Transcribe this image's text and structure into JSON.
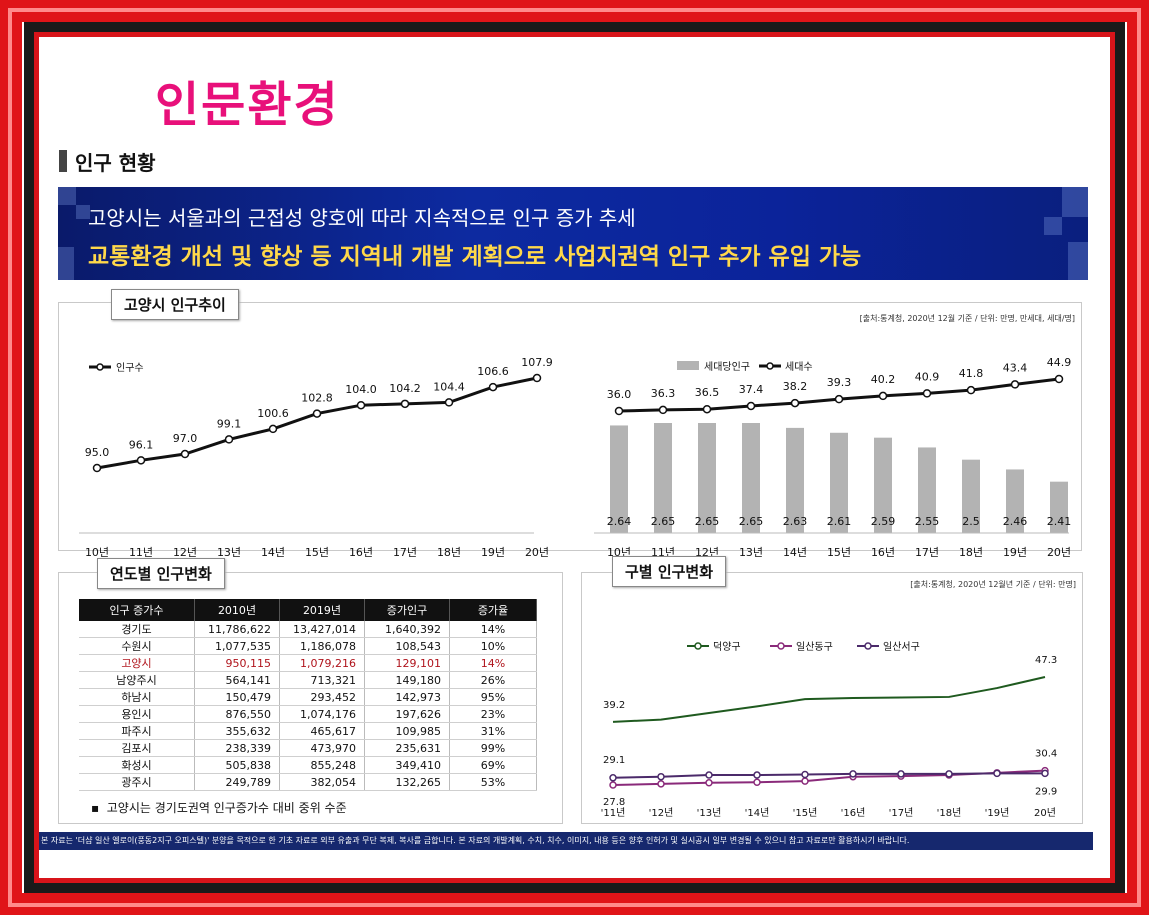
{
  "page_title": "인문환경",
  "section_title": "인구 현황",
  "banner": {
    "line1": "고양시는 서울과의  근접성 양호에 따라 지속적으로 인구 증가 추세",
    "line2": "교통환경 개선 및 향상 등 지역내 개발 계획으로 사업지권역  인구 추가 유입 가능"
  },
  "trend_panel": {
    "tab": "고양시 인구추이",
    "source": "[출처:통계청, 2020년 12월 기준 / 단위: 만명, 만세대, 세대/명]"
  },
  "yearly_panel": {
    "tab": "연도별 인구변화"
  },
  "district_panel": {
    "tab": "구별 인구변화",
    "source": "[출처:통계청, 2020년 12월년 기준 / 단위: 만명]"
  },
  "colors": {
    "title_pink": "#e8107a",
    "banner_blue": "#0d2aa0",
    "banner_yellow": "#ffd84a",
    "bar_gray": "#b3b3b3",
    "line_green": "#1f5a1f",
    "line_purple": "#8a2a7a",
    "line_violet": "#4b2a6a"
  },
  "chart_data": [
    {
      "type": "line",
      "categories": [
        "10년",
        "11년",
        "12년",
        "13년",
        "14년",
        "15년",
        "16년",
        "17년",
        "18년",
        "19년",
        "20년"
      ],
      "series": [
        {
          "name": "인구수",
          "values": [
            95.0,
            96.1,
            97.0,
            99.1,
            100.6,
            102.8,
            104.0,
            104.2,
            104.4,
            106.6,
            107.9
          ]
        }
      ],
      "value_labels": [
        "95.0",
        "96.1",
        "97.0",
        "99.1",
        "100.6",
        "102.8",
        "104.0",
        "104.2",
        "104.4",
        "106.6",
        "107.9"
      ],
      "grid": false
    },
    {
      "type": "bar",
      "categories": [
        "10년",
        "11년",
        "12년",
        "13년",
        "14년",
        "15년",
        "16년",
        "17년",
        "18년",
        "19년",
        "20년"
      ],
      "series": [
        {
          "name": "세대당인구",
          "type": "bar",
          "values": [
            2.64,
            2.65,
            2.65,
            2.65,
            2.63,
            2.61,
            2.59,
            2.55,
            2.5,
            2.46,
            2.41
          ],
          "labels": [
            "2.64",
            "2.65",
            "2.65",
            "2.65",
            "2.63",
            "2.61",
            "2.59",
            "2.55",
            "2.5",
            "2.46",
            "2.41"
          ]
        },
        {
          "name": "세대수",
          "type": "line",
          "values": [
            36.0,
            36.3,
            36.5,
            37.4,
            38.2,
            39.3,
            40.2,
            40.9,
            41.8,
            43.4,
            44.9
          ],
          "labels": [
            "36.0",
            "36.3",
            "36.5",
            "37.4",
            "38.2",
            "39.3",
            "40.2",
            "40.9",
            "41.8",
            "43.4",
            "44.9"
          ]
        }
      ],
      "grid": false
    },
    {
      "type": "table",
      "columns": [
        "인구 증가수",
        "2010년",
        "2019년",
        "증가인구",
        "증가율"
      ],
      "rows": [
        [
          "경기도",
          "11,786,622",
          "13,427,014",
          "1,640,392",
          "14%"
        ],
        [
          "수원시",
          "1,077,535",
          "1,186,078",
          "108,543",
          "10%"
        ],
        [
          "고양시",
          "950,115",
          "1,079,216",
          "129,101",
          "14%"
        ],
        [
          "남양주시",
          "564,141",
          "713,321",
          "149,180",
          "26%"
        ],
        [
          "하남시",
          "150,479",
          "293,452",
          "142,973",
          "95%"
        ],
        [
          "용인시",
          "876,550",
          "1,074,176",
          "197,626",
          "23%"
        ],
        [
          "파주시",
          "355,632",
          "465,617",
          "109,985",
          "31%"
        ],
        [
          "김포시",
          "238,339",
          "473,970",
          "235,631",
          "99%"
        ],
        [
          "화성시",
          "505,838",
          "855,248",
          "349,410",
          "69%"
        ],
        [
          "광주시",
          "249,789",
          "382,054",
          "132,265",
          "53%"
        ]
      ],
      "highlight_row": 2,
      "note": "고양시는 경기도권역 인구증가수 대비 중위 수준"
    },
    {
      "type": "line",
      "categories": [
        "'11년",
        "'12년",
        "'13년",
        "'14년",
        "'15년",
        "'16년",
        "'17년",
        "'18년",
        "'19년",
        "20년"
      ],
      "series": [
        {
          "name": "덕양구",
          "values": [
            39.2,
            39.6,
            40.8,
            42.0,
            43.3,
            43.5,
            43.6,
            43.7,
            45.3,
            47.3
          ]
        },
        {
          "name": "일산동구",
          "values": [
            27.8,
            28.0,
            28.2,
            28.3,
            28.5,
            29.3,
            29.4,
            29.6,
            30.0,
            30.4
          ]
        },
        {
          "name": "일산서구",
          "values": [
            29.1,
            29.3,
            29.6,
            29.6,
            29.7,
            29.8,
            29.8,
            29.8,
            29.9,
            29.9
          ]
        }
      ],
      "end_labels": {
        "덕양구": [
          "39.2",
          "47.3"
        ],
        "일산동구": [
          "27.8",
          "30.4"
        ],
        "일산서구": [
          "29.1",
          "29.9"
        ]
      },
      "grid": false
    }
  ],
  "footer": "본 자료는 '더샵 일산 엘로이(풍동2지구 오피스텔)' 분양을 목적으로 한 기초 자료로 외부 유출과 무단 복제, 복사를 금합니다. 본 자료의 개발계획, 수치, 치수, 이미지, 내용 등은 향후 인허가 및 실시공시 일부 변경될 수 있으니 참고 자료로만 활용하시기 바랍니다."
}
